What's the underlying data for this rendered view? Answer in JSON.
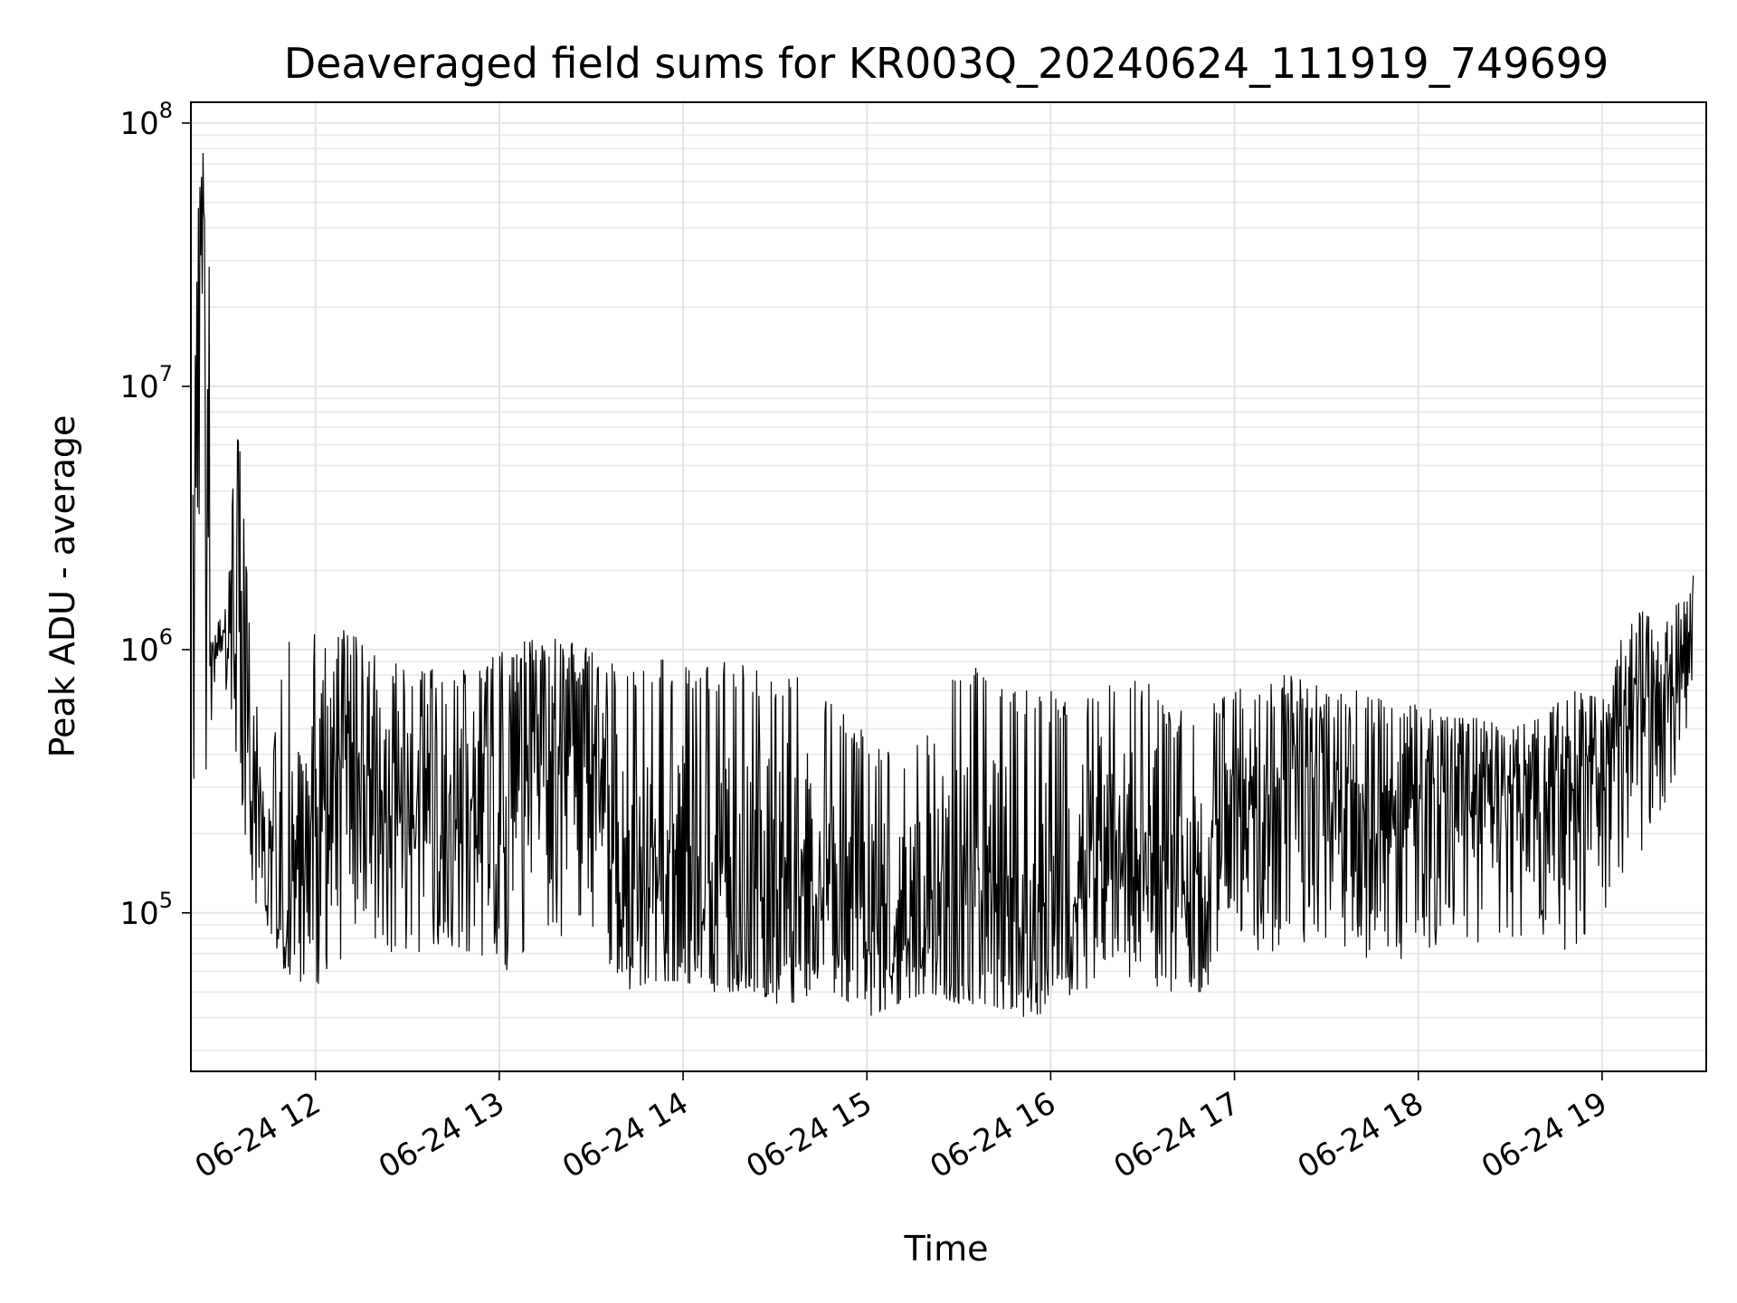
{
  "chart_data": {
    "type": "line",
    "title": "Deaveraged field sums for KR003Q_20240624_111919_749699",
    "xlabel": "Time",
    "ylabel": "Peak ADU - average",
    "yscale": "log",
    "ylim": [
      25000,
      120000000
    ],
    "xlim": [
      "2024-06-24 11:19:19",
      "2024-06-24 19:34:00"
    ],
    "grid": true,
    "legend": "none",
    "line_color": "#000000",
    "x_ticks": [
      {
        "time": "2024-06-24 12:00",
        "label": "06-24 12"
      },
      {
        "time": "2024-06-24 13:00",
        "label": "06-24 13"
      },
      {
        "time": "2024-06-24 14:00",
        "label": "06-24 14"
      },
      {
        "time": "2024-06-24 15:00",
        "label": "06-24 15"
      },
      {
        "time": "2024-06-24 16:00",
        "label": "06-24 16"
      },
      {
        "time": "2024-06-24 17:00",
        "label": "06-24 17"
      },
      {
        "time": "2024-06-24 18:00",
        "label": "06-24 18"
      },
      {
        "time": "2024-06-24 19:00",
        "label": "06-24 19"
      }
    ],
    "y_ticks": [
      {
        "value": 100000,
        "base": "10",
        "exp": "5"
      },
      {
        "value": 1000000,
        "base": "10",
        "exp": "6"
      },
      {
        "value": 10000000,
        "base": "10",
        "exp": "7"
      },
      {
        "value": 100000000,
        "base": "10",
        "exp": "8"
      }
    ],
    "series": [
      {
        "x": [
          "2024-06-24 11:20",
          "2024-06-24 11:22",
          "2024-06-24 11:24",
          "2024-06-24 11:25",
          "2024-06-24 11:26",
          "2024-06-24 11:28",
          "2024-06-24 11:30",
          "2024-06-24 11:35",
          "2024-06-24 11:40",
          "2024-06-24 11:45",
          "2024-06-24 11:50",
          "2024-06-24 11:55",
          "2024-06-24 12:00",
          "2024-06-24 12:10",
          "2024-06-24 12:20",
          "2024-06-24 12:30",
          "2024-06-24 12:40",
          "2024-06-24 12:50",
          "2024-06-24 13:00",
          "2024-06-24 13:10",
          "2024-06-24 13:20",
          "2024-06-24 13:30",
          "2024-06-24 13:40",
          "2024-06-24 13:50",
          "2024-06-24 14:00",
          "2024-06-24 14:10",
          "2024-06-24 14:20",
          "2024-06-24 14:30",
          "2024-06-24 14:40",
          "2024-06-24 14:50",
          "2024-06-24 15:00",
          "2024-06-24 15:10",
          "2024-06-24 15:20",
          "2024-06-24 15:30",
          "2024-06-24 15:40",
          "2024-06-24 15:50",
          "2024-06-24 16:00",
          "2024-06-24 16:10",
          "2024-06-24 16:20",
          "2024-06-24 16:30",
          "2024-06-24 16:40",
          "2024-06-24 16:50",
          "2024-06-24 17:00",
          "2024-06-24 17:10",
          "2024-06-24 17:20",
          "2024-06-24 17:30",
          "2024-06-24 17:40",
          "2024-06-24 17:50",
          "2024-06-24 18:00",
          "2024-06-24 18:10",
          "2024-06-24 18:20",
          "2024-06-24 18:30",
          "2024-06-24 18:40",
          "2024-06-24 18:50",
          "2024-06-24 19:00",
          "2024-06-24 19:10",
          "2024-06-24 19:20",
          "2024-06-24 19:30"
        ],
        "high": [
          5000000,
          65000000,
          85000000,
          85000000,
          2000000,
          1500000,
          1300000,
          8500000,
          700000,
          300000,
          1100000,
          1000000,
          1200000,
          1200000,
          1000000,
          900000,
          900000,
          850000,
          1000000,
          1100000,
          1100000,
          1000000,
          900000,
          950000,
          950000,
          900000,
          900000,
          800000,
          850000,
          600000,
          500000,
          400000,
          500000,
          900000,
          850000,
          700000,
          700000,
          700000,
          900000,
          800000,
          600000,
          600000,
          700000,
          800000,
          800000,
          700000,
          700000,
          650000,
          650000,
          550000,
          550000,
          500000,
          550000,
          700000,
          650000,
          1500000,
          1200000,
          2000000
        ],
        "low": [
          300000,
          300000,
          250000,
          600000,
          500000,
          700000,
          800000,
          300000,
          100000,
          80000,
          60000,
          55000,
          50000,
          70000,
          80000,
          60000,
          75000,
          65000,
          60000,
          60000,
          80000,
          90000,
          50000,
          55000,
          55000,
          50000,
          50000,
          45000,
          45000,
          50000,
          40000,
          45000,
          50000,
          45000,
          45000,
          40000,
          42000,
          50000,
          60000,
          55000,
          50000,
          50000,
          80000,
          65000,
          75000,
          80000,
          70000,
          60000,
          70000,
          80000,
          75000,
          70000,
          75000,
          70000,
          90000,
          150000,
          200000,
          600000
        ],
        "mid": [
          2000000,
          60000000,
          70000000,
          1200000,
          900000,
          1100000,
          1200000,
          700000,
          400000,
          160000,
          100000,
          90000,
          300000,
          400000,
          300000,
          250000,
          200000,
          200000,
          200000,
          400000,
          500000,
          400000,
          100000,
          100000,
          110000,
          90000,
          90000,
          120000,
          100000,
          80000,
          70000,
          70000,
          80000,
          120000,
          100000,
          80000,
          80000,
          100000,
          150000,
          150000,
          100000,
          100000,
          300000,
          300000,
          400000,
          350000,
          300000,
          250000,
          350000,
          400000,
          350000,
          300000,
          350000,
          350000,
          400000,
          800000,
          900000,
          1200000
        ]
      }
    ]
  }
}
